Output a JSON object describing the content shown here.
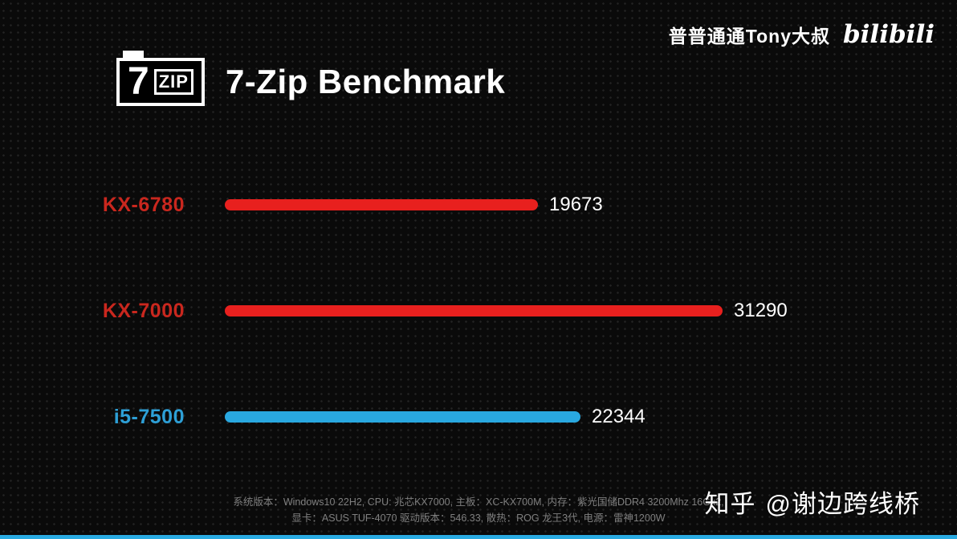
{
  "header": {
    "author": "普普通通Tony大叔",
    "platform": "bilibili",
    "logo_seven": "7",
    "logo_zip": "ZIP",
    "title": "7-Zip Benchmark"
  },
  "chart_data": {
    "type": "bar",
    "orientation": "horizontal",
    "title": "7-Zip Benchmark",
    "categories": [
      "KX-6780",
      "KX-7000",
      "i5-7500"
    ],
    "values": [
      19673,
      31290,
      22344
    ],
    "bar_colors": [
      "#e8201e",
      "#e8201e",
      "#29a8e0"
    ],
    "label_colors": [
      "#c9271e",
      "#c9271e",
      "#2d9fd6"
    ],
    "xlim": [
      0,
      31290
    ],
    "legend": "none",
    "grid": "off"
  },
  "footer": {
    "specs_line1": "系统版本：Windows10 22H2, CPU: 兆芯KX7000, 主板：XC-KX700M, 内存：紫光国储DDR4 3200Mhz 16Gx2,",
    "specs_line2": "显卡：ASUS TUF-4070 驱动版本：546.33, 散热：ROG 龙王3代, 电源：雷神1200W",
    "watermark_site": "知乎",
    "watermark_handle": "@谢边跨线桥"
  }
}
